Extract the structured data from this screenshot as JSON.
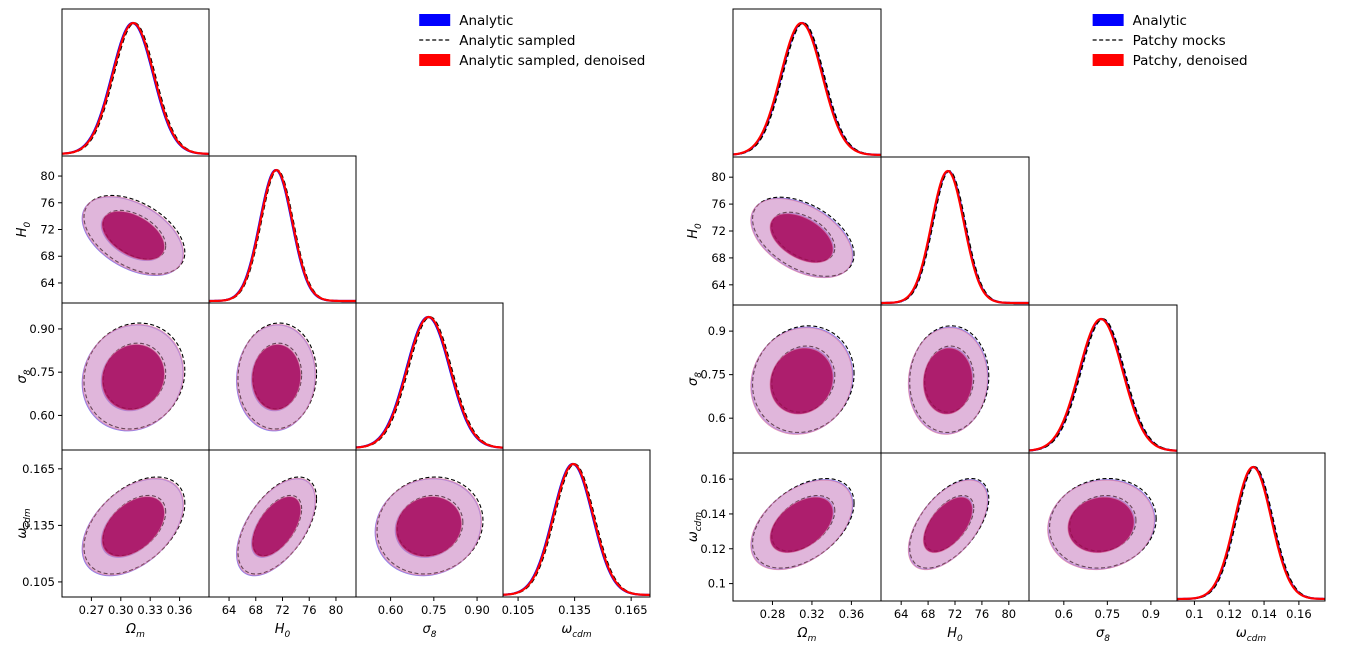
{
  "chart_data": [
    {
      "type": "corner",
      "params": [
        {
          "key": "om",
          "label": "Ω",
          "sub": "m",
          "ticks": [
            0.27,
            0.3,
            0.33,
            0.36
          ],
          "tick_labels": [
            "0.27",
            "0.30",
            "0.33",
            "0.36"
          ],
          "range": [
            0.24,
            0.39
          ],
          "mean": 0.312,
          "sigma": 0.021
        },
        {
          "key": "h0",
          "label": "H",
          "sub": "0",
          "ticks": [
            64,
            68,
            72,
            76,
            80
          ],
          "tick_labels": [
            "64",
            "68",
            "72",
            "76",
            "80"
          ],
          "range": [
            61,
            83
          ],
          "mean": 71.0,
          "sigma": 2.4
        },
        {
          "key": "s8",
          "label": "σ",
          "sub": "8",
          "ticks": [
            0.6,
            0.75,
            0.9
          ],
          "tick_labels": [
            "0.60",
            "0.75",
            "0.90"
          ],
          "range": [
            0.48,
            0.99
          ],
          "mean": 0.73,
          "sigma": 0.075
        },
        {
          "key": "wc",
          "label": "ω",
          "sub": "cdm",
          "ticks": [
            0.105,
            0.135,
            0.165
          ],
          "tick_labels": [
            "0.105",
            "0.135",
            "0.165"
          ],
          "range": [
            0.097,
            0.175
          ],
          "mean": 0.134,
          "sigma": 0.0105
        }
      ],
      "correlations": {
        "1-0": -0.45,
        "2-0": 0.1,
        "2-1": 0.05,
        "3-0": 0.45,
        "3-1": 0.55,
        "3-2": 0.1
      },
      "series": [
        {
          "name": "Analytic",
          "style": "fill",
          "color": "#0000ff",
          "shift": 0
        },
        {
          "name": "Analytic sampled",
          "style": "dashed",
          "color": "#000000",
          "shift": 0.06
        },
        {
          "name": "Analytic sampled, denoised",
          "style": "fill",
          "color": "#ff0000",
          "shift": 0.02
        }
      ],
      "legend_position": "top-right"
    },
    {
      "type": "corner",
      "params": [
        {
          "key": "om",
          "label": "Ω",
          "sub": "m",
          "ticks": [
            0.28,
            0.32,
            0.36
          ],
          "tick_labels": [
            "0.28",
            "0.32",
            "0.36"
          ],
          "range": [
            0.24,
            0.39
          ],
          "mean": 0.31,
          "sigma": 0.021
        },
        {
          "key": "h0",
          "label": "H",
          "sub": "0",
          "ticks": [
            64,
            68,
            72,
            76,
            80
          ],
          "tick_labels": [
            "64",
            "68",
            "72",
            "76",
            "80"
          ],
          "range": [
            61,
            83
          ],
          "mean": 71.0,
          "sigma": 2.4
        },
        {
          "key": "s8",
          "label": "σ",
          "sub": "8",
          "ticks": [
            0.6,
            0.75,
            0.9
          ],
          "tick_labels": [
            "0.6",
            "0.75",
            "0.9"
          ],
          "range": [
            0.48,
            0.99
          ],
          "mean": 0.73,
          "sigma": 0.075
        },
        {
          "key": "wc",
          "label": "ω",
          "sub": "cdm",
          "ticks": [
            0.1,
            0.12,
            0.14,
            0.16
          ],
          "tick_labels": [
            "0.1",
            "0.12",
            "0.14",
            "0.16"
          ],
          "range": [
            0.09,
            0.175
          ],
          "mean": 0.134,
          "sigma": 0.0105
        }
      ],
      "y_ticks_override": {
        "wc": {
          "ticks": [
            0.1,
            0.12,
            0.14,
            0.16
          ],
          "tick_labels": [
            "0.1",
            "0.12",
            "0.14",
            "0.16"
          ]
        },
        "s8": {
          "ticks": [
            0.6,
            0.75,
            0.9
          ],
          "tick_labels": [
            "0.6",
            "0.75",
            "0.9"
          ]
        }
      },
      "correlations": {
        "1-0": -0.45,
        "2-0": 0.1,
        "2-1": 0.05,
        "3-0": 0.45,
        "3-1": 0.55,
        "3-2": 0.1
      },
      "series": [
        {
          "name": "Analytic",
          "style": "fill",
          "color": "#0000ff",
          "shift": 0
        },
        {
          "name": "Patchy mocks",
          "style": "dashed",
          "color": "#000000",
          "shift": 0.04
        },
        {
          "name": "Patchy, denoised",
          "style": "fill",
          "color": "#ff0000",
          "shift": -0.02
        }
      ],
      "legend_position": "top-right"
    }
  ]
}
